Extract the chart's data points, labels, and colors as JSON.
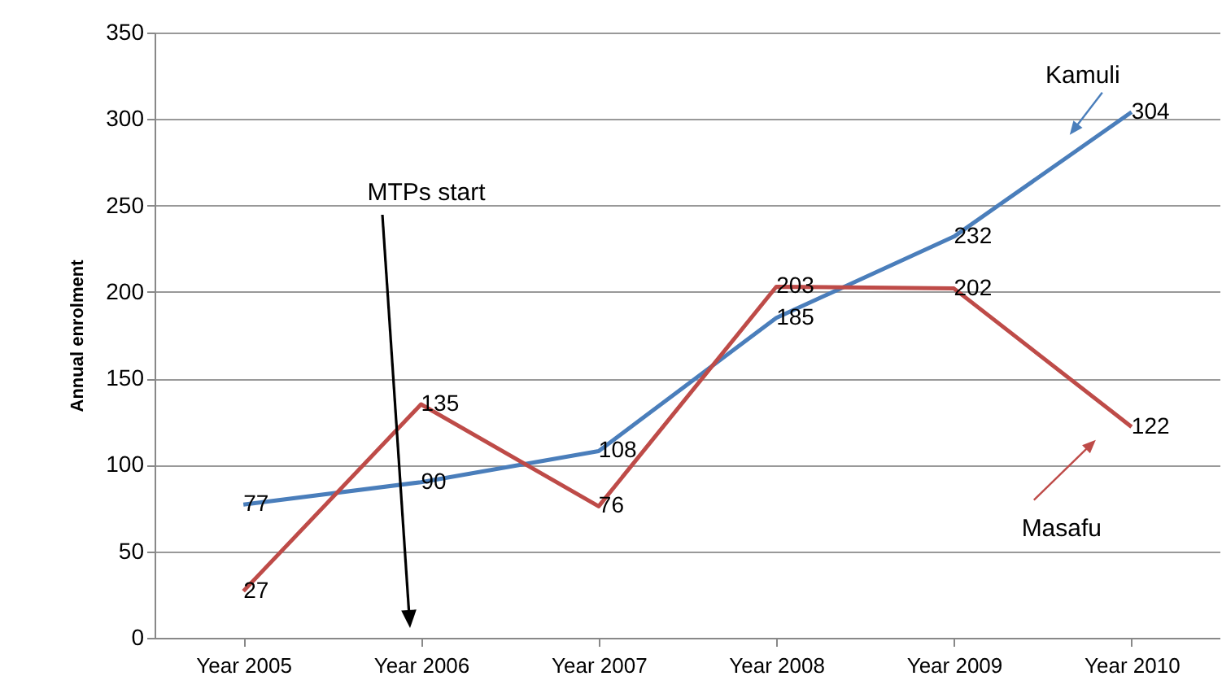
{
  "chart_data": {
    "type": "line",
    "ylabel": "Annual enrolment",
    "categories": [
      "Year 2005",
      "Year 2006",
      "Year 2007",
      "Year 2008",
      "Year 2009",
      "Year 2010"
    ],
    "series": [
      {
        "name": "Kamuli",
        "color": "#4a7ebb",
        "values": [
          77,
          90,
          108,
          185,
          232,
          304
        ]
      },
      {
        "name": "Masafu",
        "color": "#be4b48",
        "values": [
          27,
          135,
          76,
          203,
          202,
          122
        ]
      }
    ],
    "ylim": [
      0,
      350
    ],
    "yticks": [
      0,
      50,
      100,
      150,
      200,
      250,
      300,
      350
    ],
    "grid": "y",
    "legend": "right",
    "data_labels": true,
    "marker": "none",
    "line_style": "solid",
    "annotations": [
      "MTPs start"
    ]
  }
}
